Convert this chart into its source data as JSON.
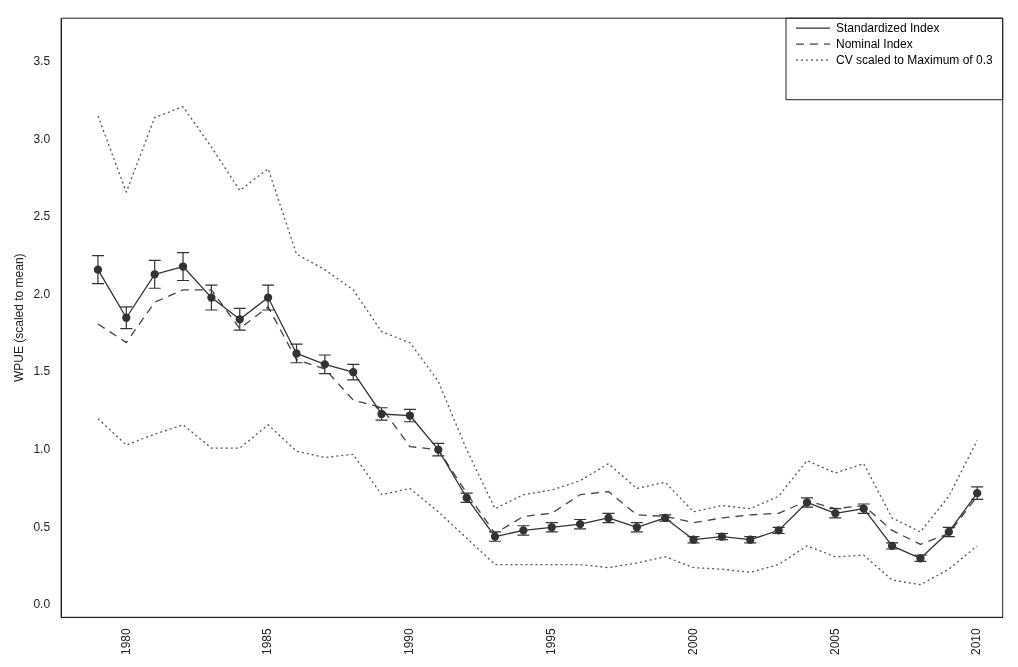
{
  "chart_data": {
    "type": "line",
    "ylabel": "WPUE (scaled to mean)",
    "x": [
      1979,
      1980,
      1981,
      1982,
      1983,
      1984,
      1985,
      1986,
      1987,
      1988,
      1989,
      1990,
      1991,
      1992,
      1993,
      1994,
      1995,
      1996,
      1997,
      1998,
      1999,
      2000,
      2001,
      2002,
      2003,
      2004,
      2005,
      2006,
      2007,
      2008,
      2009,
      2010
    ],
    "xlim": [
      1977.7,
      2010.9
    ],
    "xticks": [
      1980,
      1985,
      1990,
      1995,
      2000,
      2005,
      2010
    ],
    "ylim": [
      -0.08,
      3.78
    ],
    "yticks": [
      {
        "value": 0,
        "label": "0.0"
      },
      {
        "value": 0.5,
        "label": "0.5"
      },
      {
        "value": 1,
        "label": "1.0"
      },
      {
        "value": 1.5,
        "label": "1.5"
      },
      {
        "value": 2,
        "label": "2.0"
      },
      {
        "value": 2.5,
        "label": "2.5"
      },
      {
        "value": 3,
        "label": "3.0"
      },
      {
        "value": 3.5,
        "label": "3.5"
      }
    ],
    "grid": false,
    "legend": "top right",
    "series": [
      {
        "name": "Standardized Index",
        "color": "#333333",
        "line_style": "solid",
        "marker": "circle",
        "values": [
          2.16,
          1.85,
          2.13,
          2.18,
          1.98,
          1.84,
          1.98,
          1.62,
          1.55,
          1.5,
          1.23,
          1.22,
          1.0,
          0.69,
          0.44,
          0.48,
          0.5,
          0.52,
          0.56,
          0.5,
          0.56,
          0.42,
          0.44,
          0.42,
          0.48,
          0.66,
          0.59,
          0.62,
          0.38,
          0.3,
          0.47,
          0.72
        ],
        "errors": [
          0.09,
          0.07,
          0.09,
          0.09,
          0.08,
          0.07,
          0.08,
          0.06,
          0.06,
          0.05,
          0.04,
          0.04,
          0.04,
          0.03,
          0.03,
          0.03,
          0.03,
          0.03,
          0.03,
          0.03,
          0.02,
          0.02,
          0.02,
          0.02,
          0.02,
          0.03,
          0.03,
          0.03,
          0.02,
          0.02,
          0.03,
          0.04
        ]
      },
      {
        "name": "Nominal Index",
        "color": "#444444",
        "line_style": "dashed",
        "values": [
          1.81,
          1.69,
          1.95,
          2.03,
          2.03,
          1.78,
          1.92,
          1.58,
          1.52,
          1.32,
          1.27,
          1.02,
          1.0,
          0.72,
          0.46,
          0.57,
          0.59,
          0.71,
          0.73,
          0.58,
          0.57,
          0.53,
          0.56,
          0.58,
          0.59,
          0.67,
          0.62,
          0.64,
          0.48,
          0.39,
          0.46,
          0.7
        ]
      },
      {
        "name": "CV scaled to Maximum of 0.3",
        "color": "#555555",
        "line_style": "dotted",
        "values": [
          3.15,
          2.66,
          3.14,
          3.21,
          2.95,
          2.67,
          2.81,
          2.26,
          2.16,
          2.03,
          1.76,
          1.69,
          1.44,
          1.0,
          0.62,
          0.71,
          0.74,
          0.8,
          0.91,
          0.75,
          0.79,
          0.6,
          0.64,
          0.62,
          0.7,
          0.93,
          0.85,
          0.91,
          0.56,
          0.47,
          0.7,
          1.06
        ]
      },
      {
        "color": "#555555",
        "line_style": "dotted",
        "values": [
          1.2,
          1.03,
          1.1,
          1.16,
          1.01,
          1.01,
          1.16,
          0.99,
          0.95,
          0.97,
          0.71,
          0.75,
          0.6,
          0.43,
          0.26,
          0.26,
          0.26,
          0.26,
          0.24,
          0.27,
          0.31,
          0.24,
          0.23,
          0.21,
          0.26,
          0.38,
          0.31,
          0.32,
          0.16,
          0.13,
          0.23,
          0.38
        ]
      }
    ]
  }
}
